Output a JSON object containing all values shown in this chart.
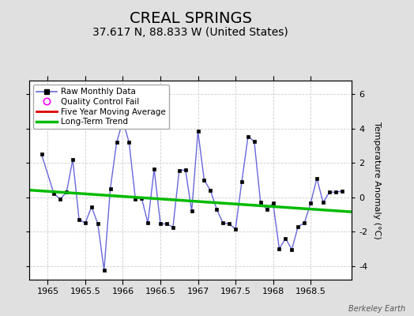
{
  "title": "CREAL SPRINGS",
  "subtitle": "37.617 N, 88.833 W (United States)",
  "ylabel": "Temperature Anomaly (°C)",
  "credit": "Berkeley Earth",
  "xlim": [
    1964.75,
    1969.05
  ],
  "ylim": [
    -4.8,
    6.8
  ],
  "yticks": [
    -4,
    -2,
    0,
    2,
    4,
    6
  ],
  "xticks": [
    1965,
    1965.5,
    1966,
    1966.5,
    1967,
    1967.5,
    1968,
    1968.5
  ],
  "background_color": "#e0e0e0",
  "plot_bg_color": "#ffffff",
  "raw_x": [
    1964.917,
    1965.083,
    1965.167,
    1965.25,
    1965.333,
    1965.417,
    1965.5,
    1965.583,
    1965.667,
    1965.75,
    1965.833,
    1965.917,
    1966.0,
    1966.083,
    1966.167,
    1966.25,
    1966.333,
    1966.417,
    1966.5,
    1966.583,
    1966.667,
    1966.75,
    1966.833,
    1966.917,
    1967.0,
    1967.083,
    1967.167,
    1967.25,
    1967.333,
    1967.417,
    1967.5,
    1967.583,
    1967.667,
    1967.75,
    1967.833,
    1967.917,
    1968.0,
    1968.083,
    1968.167,
    1968.25,
    1968.333,
    1968.417,
    1968.5,
    1968.583,
    1968.667,
    1968.75,
    1968.833,
    1968.917
  ],
  "raw_y": [
    2.5,
    0.2,
    -0.1,
    0.3,
    2.2,
    -1.3,
    -1.5,
    -0.55,
    -1.55,
    -4.25,
    0.5,
    3.2,
    4.45,
    3.2,
    -0.1,
    -0.05,
    -1.5,
    1.65,
    -1.55,
    -1.55,
    -1.75,
    1.55,
    1.6,
    -0.8,
    3.85,
    1.0,
    0.4,
    -0.7,
    -1.5,
    -1.55,
    -1.85,
    0.9,
    3.55,
    3.25,
    -0.3,
    -0.7,
    -0.35,
    -3.0,
    -2.4,
    -3.05,
    -1.7,
    -1.5,
    -0.35,
    1.1,
    -0.3,
    0.3,
    0.3,
    0.35
  ],
  "trend_x": [
    1964.75,
    1969.05
  ],
  "trend_y": [
    0.42,
    -0.85
  ],
  "line_color": "#6666dd",
  "marker_color": "#000000",
  "trend_color": "#00bb00",
  "mavg_color": "#dd0000",
  "grid_color": "#cccccc",
  "title_fontsize": 14,
  "subtitle_fontsize": 10,
  "axis_fontsize": 8,
  "label_fontsize": 8
}
